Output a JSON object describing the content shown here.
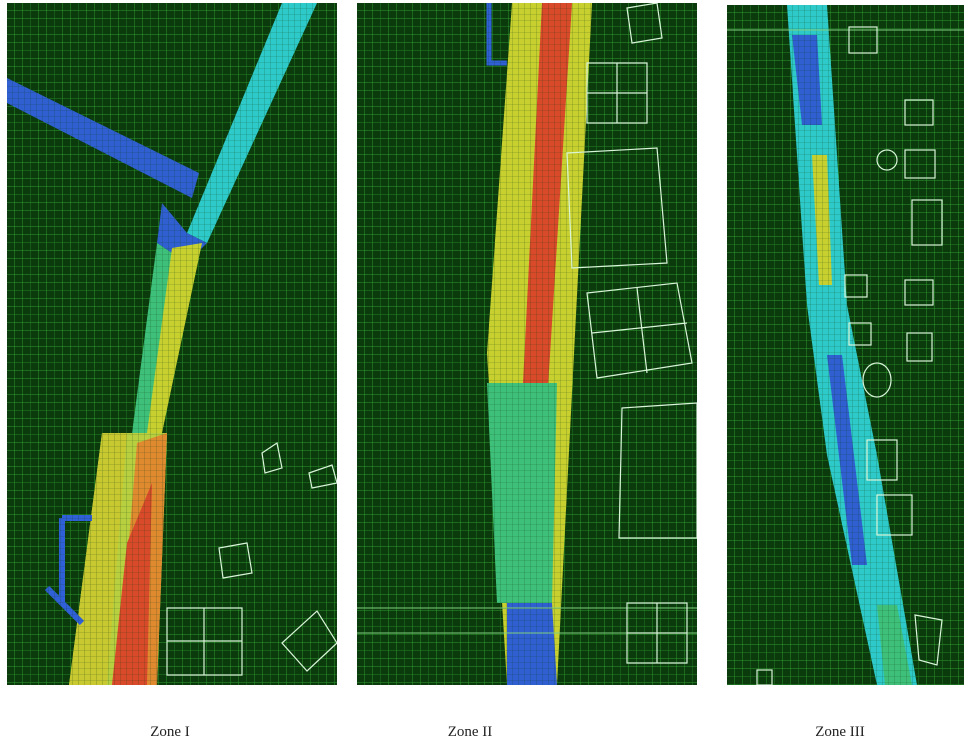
{
  "panels": [
    {
      "label": "Zone I"
    },
    {
      "label": "Zone II"
    },
    {
      "label": "Zone III"
    }
  ]
}
